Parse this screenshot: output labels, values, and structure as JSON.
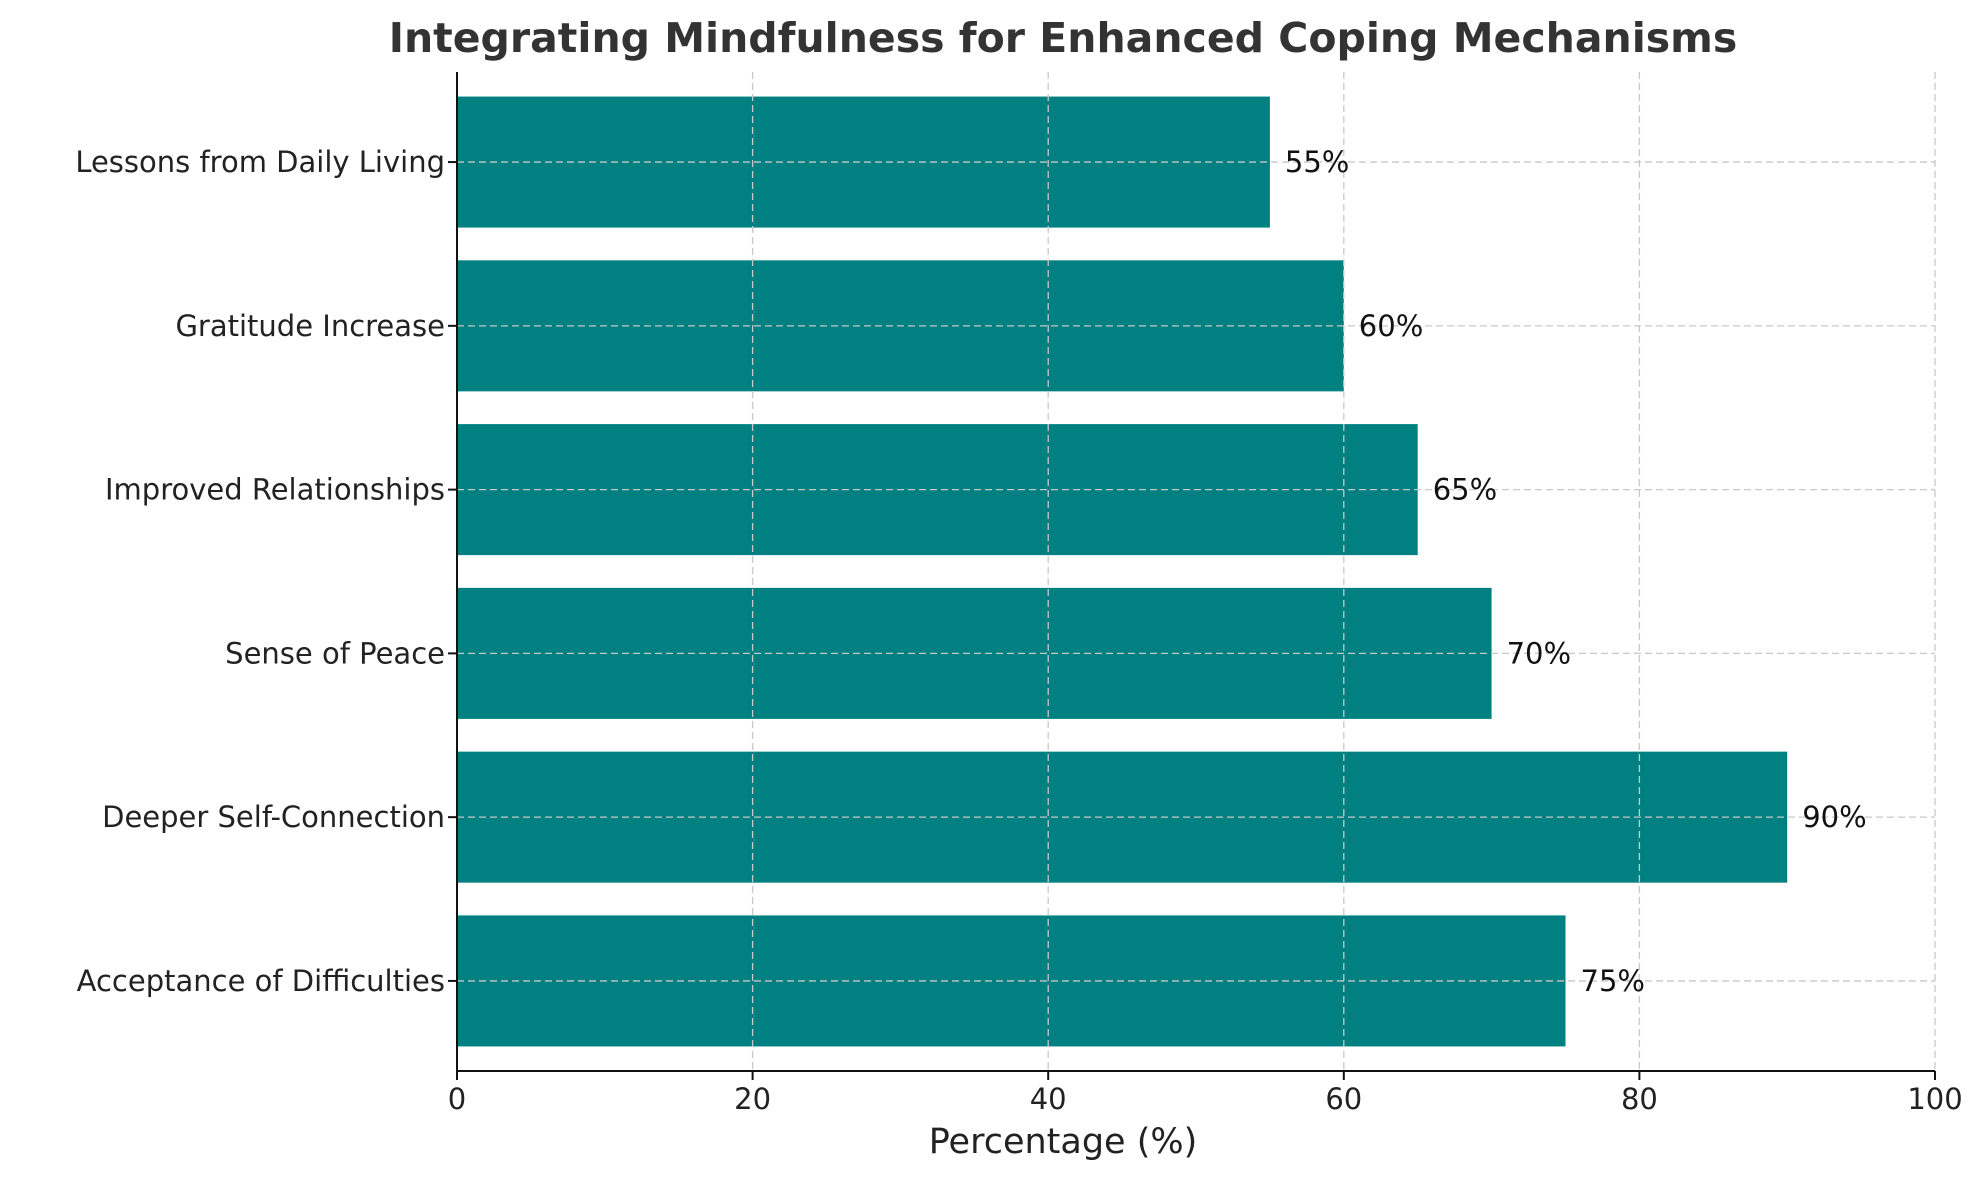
{
  "chart_data": {
    "type": "bar",
    "orientation": "horizontal",
    "title": "Integrating Mindfulness for Enhanced Coping Mechanisms",
    "xlabel": "Percentage (%)",
    "ylabel": "",
    "xlim": [
      0,
      100
    ],
    "xticks": [
      0,
      20,
      40,
      60,
      80,
      100
    ],
    "categories": [
      "Acceptance of Difficulties",
      "Deeper Self-Connection",
      "Sense of Peace",
      "Improved Relationships",
      "Gratitude Increase",
      "Lessons from Daily Living"
    ],
    "values": [
      75,
      90,
      70,
      65,
      60,
      55
    ],
    "data_labels": [
      "75%",
      "90%",
      "70%",
      "65%",
      "60%",
      "55%"
    ],
    "bar_color": "#008080",
    "grid": true,
    "legend": "none"
  }
}
